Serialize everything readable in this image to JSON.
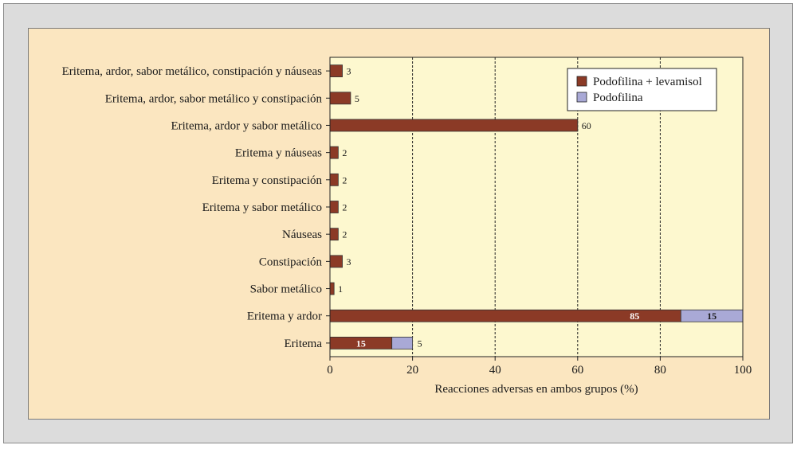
{
  "colors": {
    "series_primary": "#8b3a26",
    "series_secondary": "#a9a9d6",
    "plot_background": "#fdf8cf",
    "panel_background": "#fbe6c0",
    "frame_background": "#dcdcdc"
  },
  "chart_data": {
    "type": "bar",
    "orientation": "horizontal",
    "stacked": true,
    "title": "",
    "xlabel": "Reacciones adversas en ambos grupos (%)",
    "ylabel": "",
    "xlim": [
      0,
      100
    ],
    "xticks": [
      0,
      20,
      40,
      60,
      80,
      100
    ],
    "grid": "vertical dashed",
    "legend_position": "top-right",
    "categories": [
      "Eritema, ardor, sabor metálico, constipación y náuseas",
      "Eritema, ardor, sabor metálico y constipación",
      "Eritema, ardor y sabor metálico",
      "Eritema y náuseas",
      "Eritema y constipación",
      "Eritema y sabor metálico",
      "Náuseas",
      "Constipación",
      "Sabor metálico",
      "Eritema y ardor",
      "Eritema"
    ],
    "series": [
      {
        "name": "Podofilina + levamisol",
        "color": "#8b3a26",
        "values": [
          3,
          5,
          60,
          2,
          2,
          2,
          2,
          3,
          1,
          85,
          15
        ],
        "labels": [
          "3",
          "5",
          "60",
          "2",
          "2",
          "2",
          "2",
          "3",
          "1",
          "85",
          "15"
        ]
      },
      {
        "name": "Podofilina",
        "color": "#a9a9d6",
        "values": [
          0,
          0,
          0,
          0,
          0,
          0,
          0,
          0,
          0,
          15,
          5
        ],
        "labels": [
          "",
          "",
          "",
          "",
          "",
          "",
          "",
          "",
          "",
          "15",
          "5"
        ]
      }
    ]
  }
}
